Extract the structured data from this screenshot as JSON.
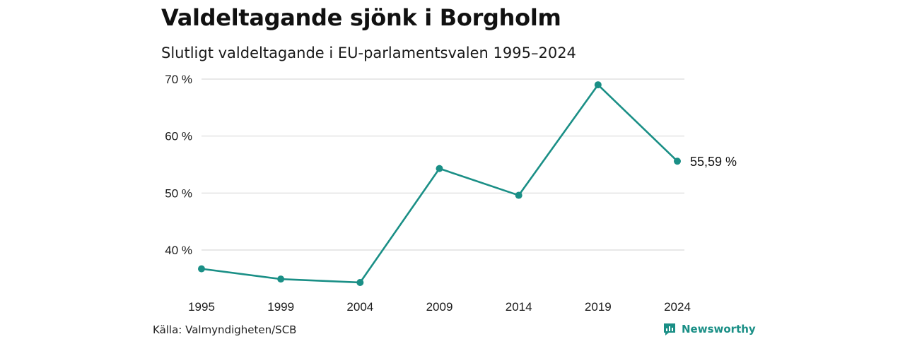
{
  "header": {
    "title": "Valdeltagande sjönk i Borgholm",
    "subtitle": "Slutligt valdeltagande i EU-parlamentsvalen 1995–2024"
  },
  "footer": {
    "source": "Källa: Valmyndigheten/SCB",
    "brand": "Newsworthy",
    "brand_icon": "bar-chart-speech-bubble-icon"
  },
  "colors": {
    "line": "#1a8f86",
    "grid": "#d9d9d9"
  },
  "chart_data": {
    "type": "line",
    "title": "Valdeltagande sjönk i Borgholm",
    "subtitle": "Slutligt valdeltagande i EU-parlamentsvalen 1995–2024",
    "x": [
      "1995",
      "1999",
      "2004",
      "2009",
      "2014",
      "2019",
      "2024"
    ],
    "series": [
      {
        "values": [
          36.7,
          34.9,
          34.3,
          54.3,
          49.6,
          69.0,
          55.59
        ]
      }
    ],
    "yticks": [
      40,
      50,
      60,
      70
    ],
    "ytick_labels": [
      "40 %",
      "50 %",
      "60 %",
      "70 %"
    ],
    "ylim": [
      33,
      70.5
    ],
    "grid": "horizontal",
    "end_label": "55,59 %",
    "legend": "none"
  }
}
